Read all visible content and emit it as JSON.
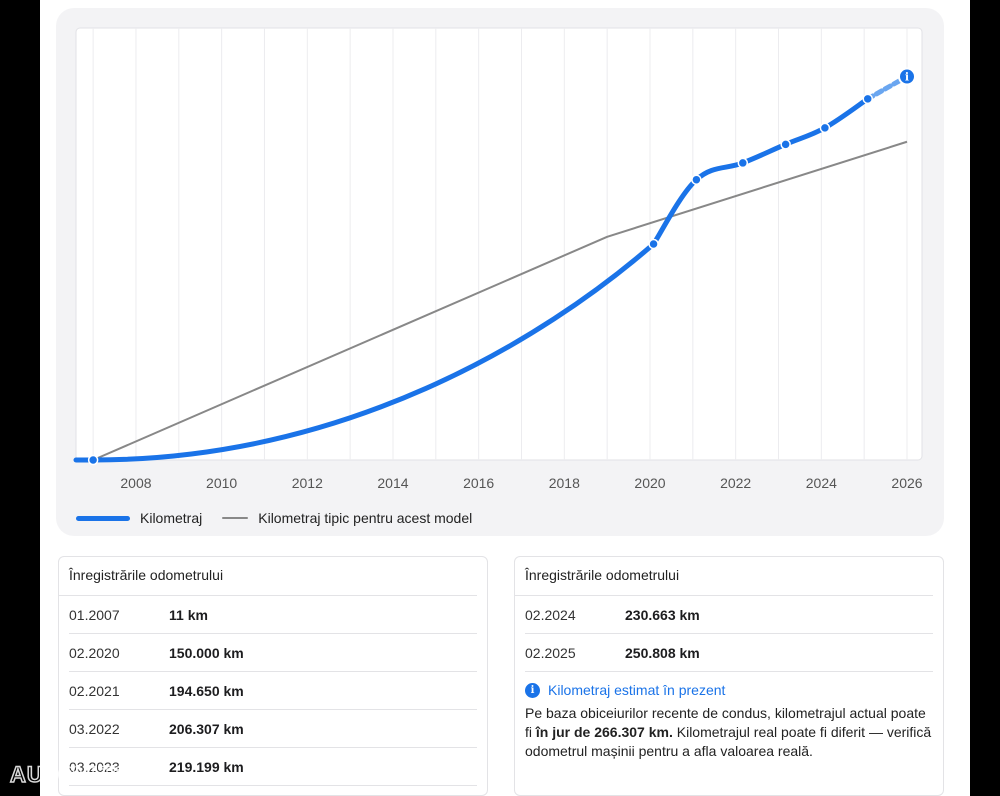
{
  "chart_data": {
    "type": "line",
    "title": "",
    "xlabel": "",
    "ylabel": "",
    "x_ticks": [
      "2008",
      "2010",
      "2012",
      "2014",
      "2016",
      "2018",
      "2020",
      "2022",
      "2024",
      "2026"
    ],
    "xlim": [
      2006.6,
      2026.35
    ],
    "ylim": [
      0,
      300000
    ],
    "grid": "vertical",
    "legend_position": "bottom-left",
    "series": [
      {
        "name": "Kilometraj",
        "color": "#1a73e8",
        "points": [
          {
            "date": "01.2007",
            "km": 11
          },
          {
            "date": "02.2020",
            "km": 150000
          },
          {
            "date": "02.2021",
            "km": 194650
          },
          {
            "date": "03.2022",
            "km": 206307
          },
          {
            "date": "03.2023",
            "km": 219199
          },
          {
            "date": "02.2024",
            "km": 230663
          },
          {
            "date": "02.2025",
            "km": 250808
          }
        ],
        "estimated": {
          "date": "2026",
          "km": 266307
        }
      },
      {
        "name": "Kilometraj tipic pentru acest model",
        "color": "#888888",
        "points": [
          {
            "date": "01.2007",
            "km": 0
          },
          {
            "date": "2019",
            "km": 155000
          },
          {
            "date": "2026",
            "km": 221000
          }
        ]
      }
    ]
  },
  "legend": {
    "series_1": "Kilometraj",
    "series_2": "Kilometraj tipic pentru acest model"
  },
  "records": {
    "left_title": "Înregistrările odometrului",
    "right_title": "Înregistrările odometrului",
    "left_rows": [
      {
        "date": "01.2007",
        "km": "11 km"
      },
      {
        "date": "02.2020",
        "km": "150.000 km"
      },
      {
        "date": "02.2021",
        "km": "194.650 km"
      },
      {
        "date": "03.2022",
        "km": "206.307 km"
      },
      {
        "date": "03.2023",
        "km": "219.199 km"
      }
    ],
    "right_rows": [
      {
        "date": "02.2024",
        "km": "230.663 km"
      },
      {
        "date": "02.2025",
        "km": "250.808 km"
      }
    ]
  },
  "estimate": {
    "icon": "info-icon",
    "title": "Kilometraj estimat în prezent",
    "text_before": "Pe baza obiceiurilor recente de condus, kilometrajul actual poate fi ",
    "text_bold": "în jur de 266.307 km.",
    "text_after": " Kilometrajul real poate fi diferit — verifică odometrul mașinii pentru a afla valoarea reală."
  },
  "watermark": "AUTOVITO",
  "colors": {
    "accent": "#1a73e8",
    "typical": "#888888",
    "card_bg": "#f3f3f5"
  }
}
